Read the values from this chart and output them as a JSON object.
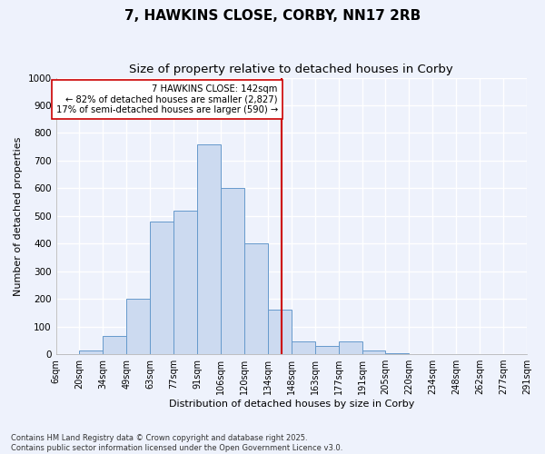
{
  "title": "7, HAWKINS CLOSE, CORBY, NN17 2RB",
  "subtitle": "Size of property relative to detached houses in Corby",
  "xlabel": "Distribution of detached houses by size in Corby",
  "ylabel": "Number of detached properties",
  "footnote": "Contains HM Land Registry data © Crown copyright and database right 2025.\nContains public sector information licensed under the Open Government Licence v3.0.",
  "bin_labels": [
    "6sqm",
    "20sqm",
    "34sqm",
    "49sqm",
    "63sqm",
    "77sqm",
    "91sqm",
    "106sqm",
    "120sqm",
    "134sqm",
    "148sqm",
    "163sqm",
    "177sqm",
    "191sqm",
    "205sqm",
    "220sqm",
    "234sqm",
    "248sqm",
    "262sqm",
    "277sqm",
    "291sqm"
  ],
  "bar_heights": [
    0,
    12,
    65,
    200,
    480,
    520,
    760,
    600,
    400,
    160,
    45,
    30,
    45,
    12,
    5,
    0,
    0,
    0,
    0,
    0
  ],
  "bar_color": "#ccdaf0",
  "bar_edge_color": "#6699cc",
  "vline_color": "#cc0000",
  "annotation_text": "7 HAWKINS CLOSE: 142sqm\n← 82% of detached houses are smaller (2,827)\n17% of semi-detached houses are larger (590) →",
  "annotation_box_facecolor": "#ffffff",
  "annotation_box_edgecolor": "#cc0000",
  "ylim": [
    0,
    1000
  ],
  "yticks": [
    0,
    100,
    200,
    300,
    400,
    500,
    600,
    700,
    800,
    900,
    1000
  ],
  "bg_color": "#eef2fc",
  "grid_color": "#ffffff",
  "bin_starts": [
    6,
    20,
    34,
    49,
    63,
    77,
    91,
    106,
    120,
    134,
    148,
    163,
    177,
    191,
    205,
    220,
    234,
    248,
    262,
    277,
    291
  ],
  "prop_size": 142
}
